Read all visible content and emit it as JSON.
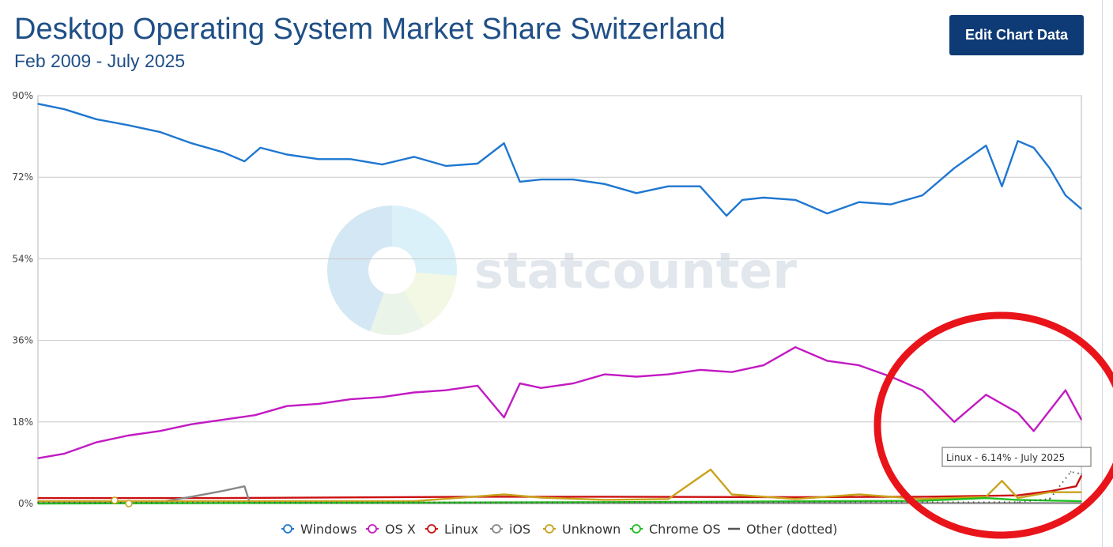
{
  "header": {
    "title": "Desktop Operating System Market Share Switzerland",
    "subtitle": "Feb 2009 - July 2025",
    "edit_button": "Edit Chart Data"
  },
  "watermark": "statcounter",
  "tooltip": "Linux - 6.14% - July 2025",
  "annotation": {
    "shape": "red-ellipse",
    "color": "#e8141a"
  },
  "chart_data": {
    "type": "line",
    "title": "Desktop Operating System Market Share Switzerland",
    "subtitle": "Feb 2009 - July 2025",
    "ylim": [
      0,
      90
    ],
    "yticks": [
      "0%",
      "18%",
      "36%",
      "54%",
      "72%",
      "90%"
    ],
    "ytick_values": [
      0,
      18,
      36,
      54,
      72,
      90
    ],
    "x_range": [
      "2009-02",
      "2025-07"
    ],
    "grid": true,
    "legend_position": "bottom",
    "series": [
      {
        "name": "Windows",
        "color": "#1f77d0",
        "style": "solid",
        "points": [
          [
            "2009-02",
            88.2
          ],
          [
            "2009-07",
            87
          ],
          [
            "2010-01",
            84.8
          ],
          [
            "2010-07",
            83.5
          ],
          [
            "2011-01",
            82
          ],
          [
            "2011-07",
            79.5
          ],
          [
            "2012-01",
            77.5
          ],
          [
            "2012-05",
            75.5
          ],
          [
            "2012-08",
            78.5
          ],
          [
            "2013-01",
            77
          ],
          [
            "2013-07",
            76
          ],
          [
            "2014-01",
            76
          ],
          [
            "2014-07",
            74.8
          ],
          [
            "2015-01",
            76.5
          ],
          [
            "2015-07",
            74.5
          ],
          [
            "2016-01",
            75
          ],
          [
            "2016-06",
            79.5
          ],
          [
            "2016-09",
            71
          ],
          [
            "2017-01",
            71.5
          ],
          [
            "2017-07",
            71.5
          ],
          [
            "2018-01",
            70.5
          ],
          [
            "2018-07",
            68.5
          ],
          [
            "2019-01",
            70
          ],
          [
            "2019-07",
            70
          ],
          [
            "2019-12",
            63.5
          ],
          [
            "2020-03",
            67
          ],
          [
            "2020-07",
            67.5
          ],
          [
            "2021-01",
            67
          ],
          [
            "2021-07",
            64
          ],
          [
            "2022-01",
            66.5
          ],
          [
            "2022-07",
            66
          ],
          [
            "2023-01",
            68
          ],
          [
            "2023-07",
            74
          ],
          [
            "2024-01",
            79
          ],
          [
            "2024-04",
            70
          ],
          [
            "2024-07",
            80
          ],
          [
            "2024-10",
            78.5
          ],
          [
            "2025-01",
            74
          ],
          [
            "2025-04",
            68
          ],
          [
            "2025-07",
            65
          ]
        ]
      },
      {
        "name": "OS X",
        "color": "#c21ac2",
        "style": "solid",
        "points": [
          [
            "2009-02",
            10
          ],
          [
            "2009-07",
            11
          ],
          [
            "2010-01",
            13.5
          ],
          [
            "2010-07",
            15
          ],
          [
            "2011-01",
            16
          ],
          [
            "2011-07",
            17.5
          ],
          [
            "2012-01",
            18.5
          ],
          [
            "2012-07",
            19.5
          ],
          [
            "2013-01",
            21.5
          ],
          [
            "2013-07",
            22
          ],
          [
            "2014-01",
            23
          ],
          [
            "2014-07",
            23.5
          ],
          [
            "2015-01",
            24.5
          ],
          [
            "2015-07",
            25
          ],
          [
            "2016-01",
            26
          ],
          [
            "2016-06",
            19
          ],
          [
            "2016-09",
            26.5
          ],
          [
            "2017-01",
            25.5
          ],
          [
            "2017-07",
            26.5
          ],
          [
            "2018-01",
            28.5
          ],
          [
            "2018-07",
            28
          ],
          [
            "2019-01",
            28.5
          ],
          [
            "2019-07",
            29.5
          ],
          [
            "2020-01",
            29
          ],
          [
            "2020-07",
            30.5
          ],
          [
            "2021-01",
            34.5
          ],
          [
            "2021-07",
            31.5
          ],
          [
            "2022-01",
            30.5
          ],
          [
            "2022-07",
            28
          ],
          [
            "2023-01",
            25
          ],
          [
            "2023-07",
            18
          ],
          [
            "2024-01",
            24
          ],
          [
            "2024-07",
            20
          ],
          [
            "2024-10",
            16
          ],
          [
            "2025-01",
            20.5
          ],
          [
            "2025-04",
            25
          ],
          [
            "2025-07",
            18.5
          ]
        ]
      },
      {
        "name": "Linux",
        "color": "#cc1010",
        "style": "solid",
        "points": [
          [
            "2009-02",
            1.2
          ],
          [
            "2012-01",
            1.2
          ],
          [
            "2016-01",
            1.5
          ],
          [
            "2018-01",
            1.5
          ],
          [
            "2021-01",
            1.4
          ],
          [
            "2023-01",
            1.5
          ],
          [
            "2024-07",
            1.8
          ],
          [
            "2025-01",
            2.7
          ],
          [
            "2025-06",
            3.8
          ],
          [
            "2025-07",
            6.14
          ]
        ]
      },
      {
        "name": "iOS",
        "color": "#888888",
        "style": "solid",
        "points": [
          [
            "2009-02",
            0.1
          ],
          [
            "2011-01",
            0.3
          ],
          [
            "2011-07",
            1.5
          ],
          [
            "2012-01",
            2.8
          ],
          [
            "2012-05",
            3.8
          ],
          [
            "2012-06",
            0.1
          ],
          [
            "2025-07",
            0.1
          ]
        ]
      },
      {
        "name": "Unknown",
        "color": "#c9a21c",
        "style": "solid",
        "points": [
          [
            "2009-02",
            0.5
          ],
          [
            "2015-01",
            0.5
          ],
          [
            "2016-06",
            2
          ],
          [
            "2017-01",
            1.3
          ],
          [
            "2018-01",
            0.8
          ],
          [
            "2019-01",
            1
          ],
          [
            "2019-09",
            7.5
          ],
          [
            "2020-01",
            2
          ],
          [
            "2021-01",
            1
          ],
          [
            "2022-01",
            2
          ],
          [
            "2023-01",
            1
          ],
          [
            "2024-01",
            1.5
          ],
          [
            "2024-04",
            5
          ],
          [
            "2024-07",
            1.2
          ],
          [
            "2025-01",
            2.5
          ],
          [
            "2025-07",
            2.5
          ]
        ]
      },
      {
        "name": "Chrome OS",
        "color": "#1fbf1f",
        "style": "solid",
        "points": [
          [
            "2009-02",
            0
          ],
          [
            "2018-01",
            0.3
          ],
          [
            "2023-01",
            0.6
          ],
          [
            "2024-01",
            1.2
          ],
          [
            "2024-07",
            0.8
          ],
          [
            "2025-07",
            0.5
          ]
        ]
      },
      {
        "name": "Other (dotted)",
        "color": "#555555",
        "style": "dotted",
        "points": [
          [
            "2009-02",
            0.2
          ],
          [
            "2024-07",
            0.3
          ],
          [
            "2025-01",
            1
          ],
          [
            "2025-05",
            7
          ],
          [
            "2025-07",
            6.5
          ]
        ]
      }
    ]
  }
}
